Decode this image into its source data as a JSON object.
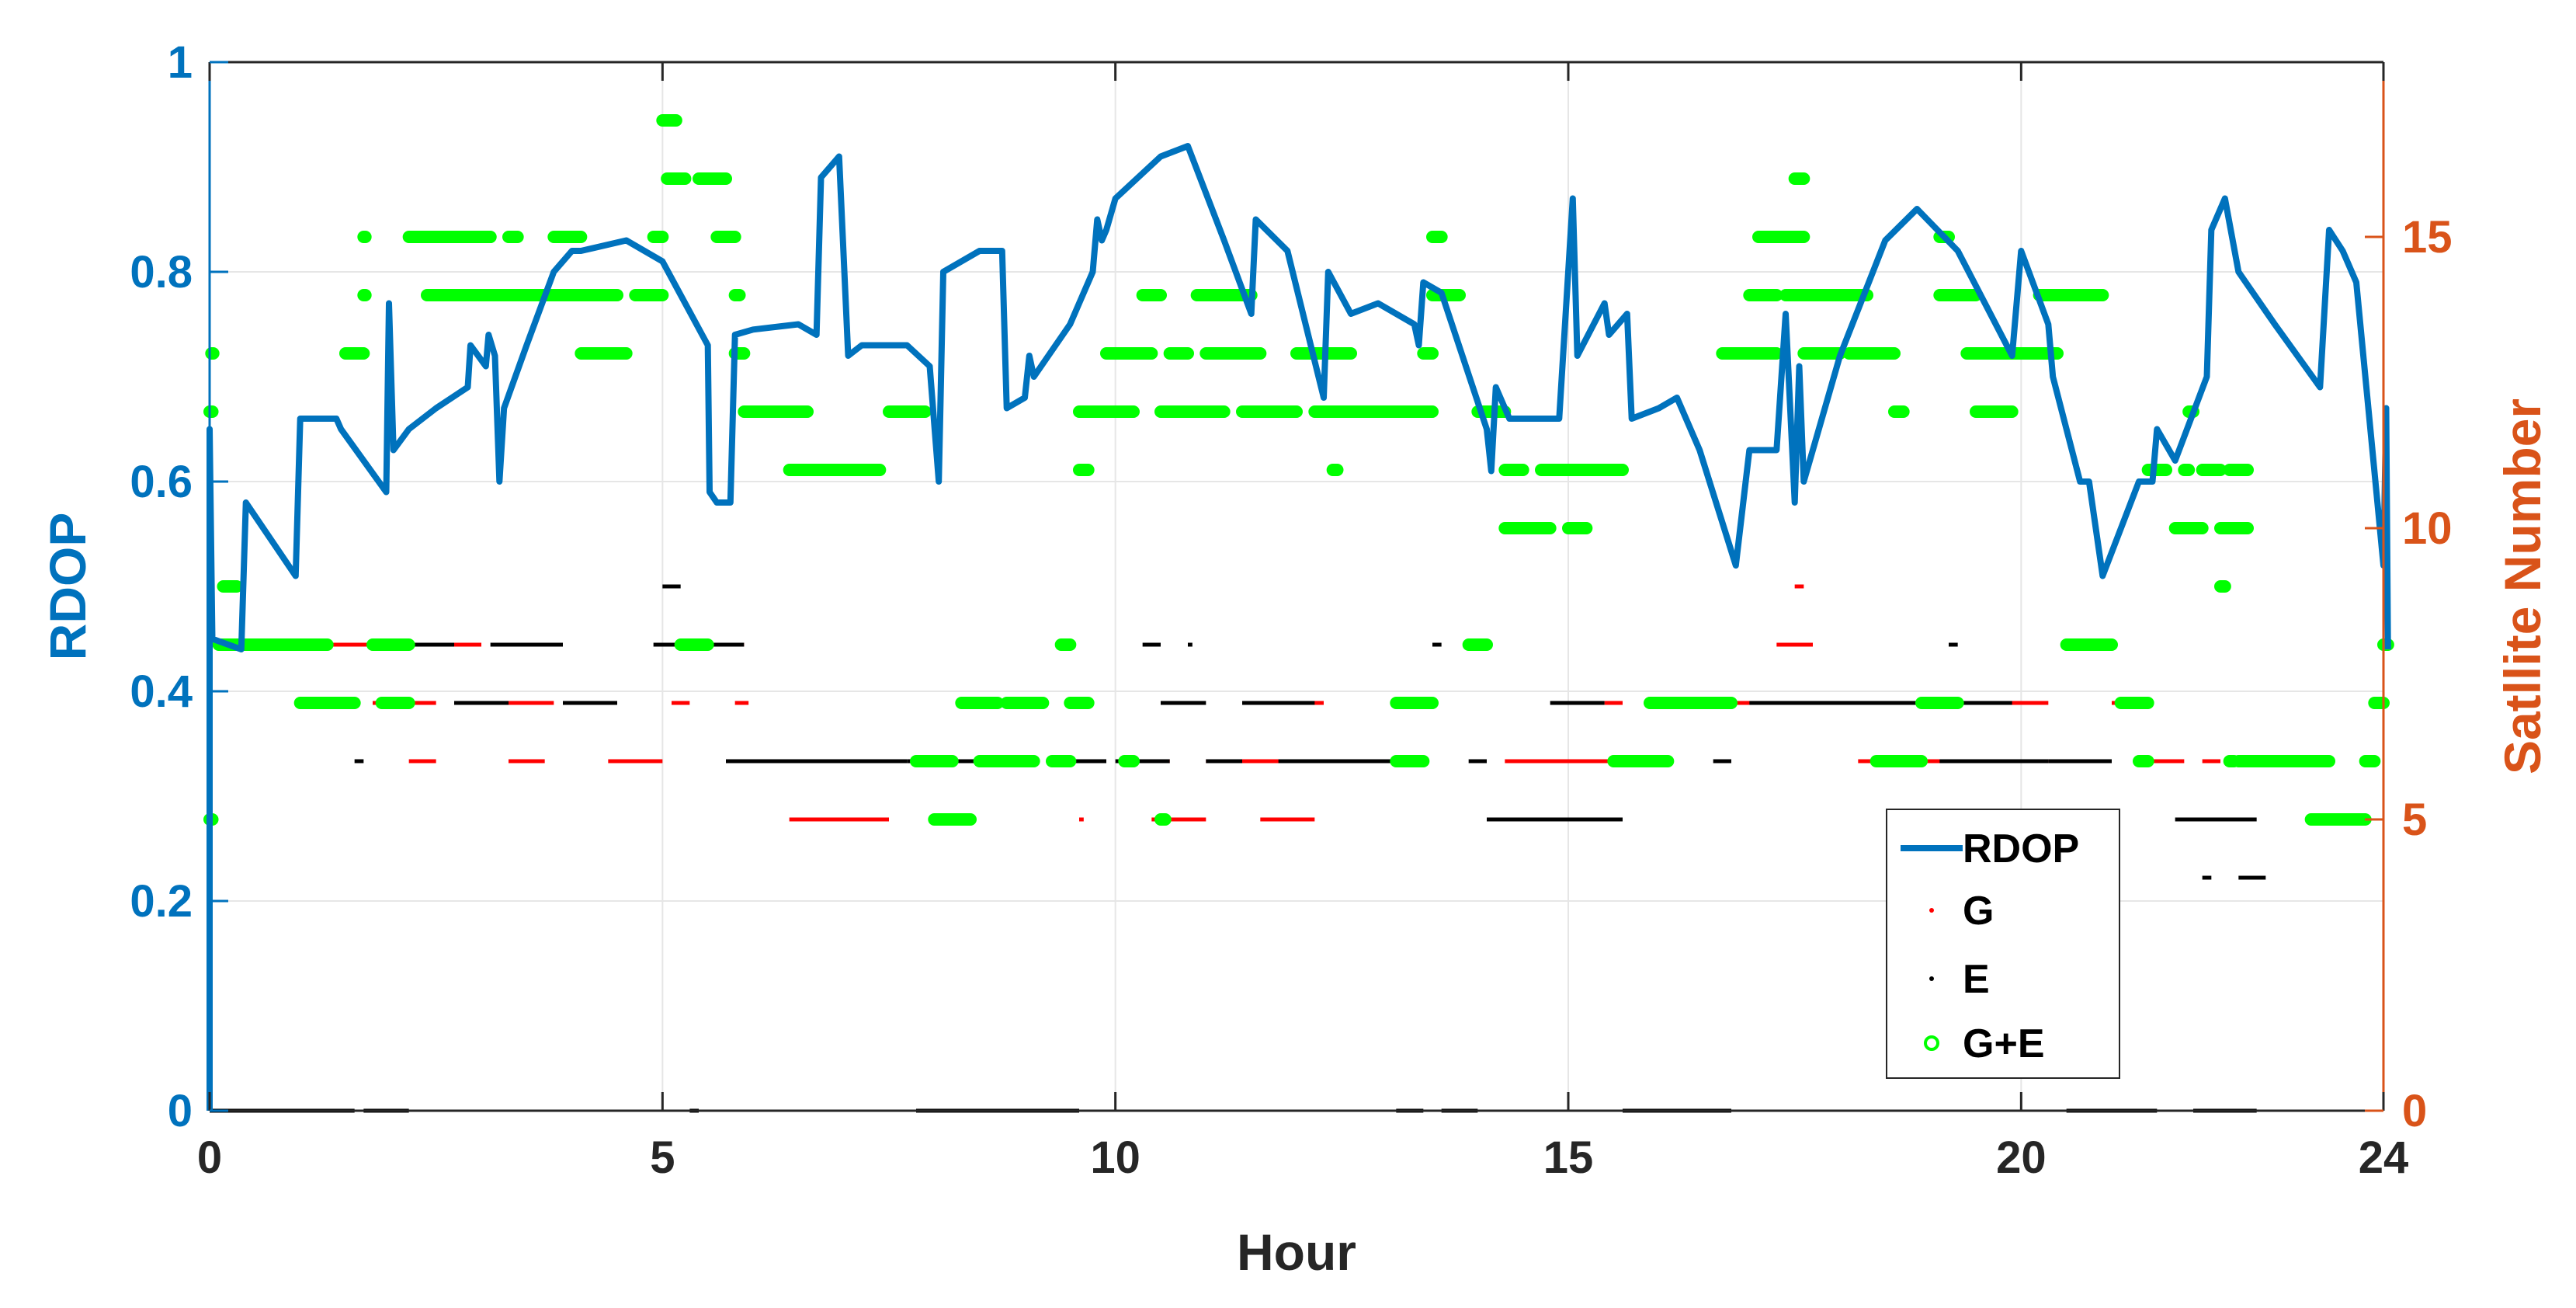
{
  "chart_data": {
    "type": "line",
    "xlabel": "Hour",
    "ylabel_left": "RDOP",
    "ylabel_right": "Satllite Number",
    "xlim": [
      0,
      24
    ],
    "ylim_left": [
      0,
      1
    ],
    "ylim_right": [
      0,
      18
    ],
    "x_ticks": [
      0,
      5,
      10,
      15,
      20,
      24
    ],
    "y_left_ticks": [
      0,
      0.2,
      0.4,
      0.6,
      0.8,
      1
    ],
    "y_right_ticks": [
      0,
      5,
      10,
      15
    ],
    "x_tick_labels": [
      "0",
      "5",
      "10",
      "15",
      "20",
      "24"
    ],
    "y_left_tick_labels": [
      "0",
      "0.2",
      "0.4",
      "0.6",
      "0.8",
      "1"
    ],
    "y_right_tick_labels": [
      "0",
      "5",
      "10",
      "15"
    ],
    "grid": true,
    "legend_position": "bottom-right",
    "colors": {
      "rdop": "#0072BD",
      "g": "#FF0000",
      "e": "#000000",
      "ge": "#00FF00",
      "right_axis": "#D95319",
      "grid": "#E6E6E6"
    },
    "legend": [
      {
        "key": "rdop",
        "label": "RDOP",
        "style": "line"
      },
      {
        "key": "g",
        "label": "G",
        "style": "dot"
      },
      {
        "key": "e",
        "label": "E",
        "style": "dot"
      },
      {
        "key": "ge",
        "label": "G+E",
        "style": "circle"
      }
    ],
    "rdop": [
      [
        0,
        0
      ],
      [
        0,
        0.65
      ],
      [
        0.03,
        0.45
      ],
      [
        0.35,
        0.44
      ],
      [
        0.4,
        0.58
      ],
      [
        0.95,
        0.51
      ],
      [
        1,
        0.66
      ],
      [
        1.4,
        0.66
      ],
      [
        1.45,
        0.65
      ],
      [
        1.95,
        0.59
      ],
      [
        1.98,
        0.77
      ],
      [
        2.03,
        0.63
      ],
      [
        2.2,
        0.65
      ],
      [
        2.5,
        0.67
      ],
      [
        2.85,
        0.69
      ],
      [
        2.88,
        0.73
      ],
      [
        3.05,
        0.71
      ],
      [
        3.08,
        0.74
      ],
      [
        3.15,
        0.72
      ],
      [
        3.2,
        0.6
      ],
      [
        3.25,
        0.67
      ],
      [
        3.5,
        0.73
      ],
      [
        3.8,
        0.8
      ],
      [
        4.0,
        0.82
      ],
      [
        4.1,
        0.82
      ],
      [
        4.6,
        0.83
      ],
      [
        5.0,
        0.81
      ],
      [
        5.5,
        0.73
      ],
      [
        5.52,
        0.59
      ],
      [
        5.6,
        0.58
      ],
      [
        5.75,
        0.58
      ],
      [
        5.8,
        0.74
      ],
      [
        6.0,
        0.745
      ],
      [
        6.5,
        0.75
      ],
      [
        6.7,
        0.74
      ],
      [
        6.75,
        0.89
      ],
      [
        6.95,
        0.91
      ],
      [
        7.05,
        0.72
      ],
      [
        7.2,
        0.73
      ],
      [
        7.7,
        0.73
      ],
      [
        7.95,
        0.71
      ],
      [
        8.05,
        0.6
      ],
      [
        8.1,
        0.8
      ],
      [
        8.5,
        0.82
      ],
      [
        8.75,
        0.82
      ],
      [
        8.8,
        0.67
      ],
      [
        9.0,
        0.68
      ],
      [
        9.05,
        0.72
      ],
      [
        9.1,
        0.7
      ],
      [
        9.5,
        0.75
      ],
      [
        9.75,
        0.8
      ],
      [
        9.8,
        0.85
      ],
      [
        9.85,
        0.83
      ],
      [
        9.9,
        0.84
      ],
      [
        10.0,
        0.87
      ],
      [
        10.5,
        0.91
      ],
      [
        10.8,
        0.92
      ],
      [
        11.2,
        0.83
      ],
      [
        11.5,
        0.76
      ],
      [
        11.55,
        0.85
      ],
      [
        11.9,
        0.82
      ],
      [
        12.3,
        0.68
      ],
      [
        12.35,
        0.8
      ],
      [
        12.6,
        0.76
      ],
      [
        12.9,
        0.77
      ],
      [
        13.3,
        0.75
      ],
      [
        13.35,
        0.73
      ],
      [
        13.4,
        0.79
      ],
      [
        13.6,
        0.78
      ],
      [
        14.1,
        0.65
      ],
      [
        14.15,
        0.61
      ],
      [
        14.2,
        0.69
      ],
      [
        14.35,
        0.66
      ],
      [
        14.6,
        0.66
      ],
      [
        14.9,
        0.66
      ],
      [
        15.05,
        0.87
      ],
      [
        15.1,
        0.72
      ],
      [
        15.4,
        0.77
      ],
      [
        15.45,
        0.74
      ],
      [
        15.65,
        0.76
      ],
      [
        15.7,
        0.66
      ],
      [
        16.0,
        0.67
      ],
      [
        16.2,
        0.68
      ],
      [
        16.45,
        0.63
      ],
      [
        16.85,
        0.52
      ],
      [
        17.0,
        0.63
      ],
      [
        17.3,
        0.63
      ],
      [
        17.4,
        0.76
      ],
      [
        17.5,
        0.58
      ],
      [
        17.55,
        0.71
      ],
      [
        17.6,
        0.6
      ],
      [
        18.0,
        0.72
      ],
      [
        18.5,
        0.83
      ],
      [
        18.85,
        0.86
      ],
      [
        19.3,
        0.82
      ],
      [
        19.6,
        0.77
      ],
      [
        19.9,
        0.72
      ],
      [
        20.0,
        0.82
      ],
      [
        20.3,
        0.75
      ],
      [
        20.35,
        0.7
      ],
      [
        20.65,
        0.6
      ],
      [
        20.75,
        0.6
      ],
      [
        20.9,
        0.51
      ],
      [
        21.3,
        0.6
      ],
      [
        21.45,
        0.6
      ],
      [
        21.5,
        0.65
      ],
      [
        21.7,
        0.62
      ],
      [
        22.05,
        0.7
      ],
      [
        22.1,
        0.84
      ],
      [
        22.25,
        0.87
      ],
      [
        22.4,
        0.8
      ],
      [
        22.8,
        0.75
      ],
      [
        23.3,
        0.69
      ],
      [
        23.4,
        0.84
      ],
      [
        23.55,
        0.82
      ],
      [
        23.7,
        0.79
      ],
      [
        24.0,
        0.52
      ],
      [
        24.03,
        0.67
      ],
      [
        24.05,
        0.44
      ]
    ],
    "g": [
      [
        0.0,
        1.8,
        8
      ],
      [
        0.5,
        2.3,
        8
      ],
      [
        1.8,
        2.2,
        7
      ],
      [
        2.0,
        2.5,
        7
      ],
      [
        2.2,
        2.5,
        6
      ],
      [
        2.6,
        3.0,
        8
      ],
      [
        2.8,
        3.4,
        7
      ],
      [
        3.0,
        3.8,
        7
      ],
      [
        3.3,
        3.7,
        6
      ],
      [
        3.9,
        4.5,
        7
      ],
      [
        4.4,
        5.0,
        6
      ],
      [
        5.0,
        5.9,
        8
      ],
      [
        5.1,
        5.3,
        7
      ],
      [
        5.8,
        5.95,
        7
      ],
      [
        6.4,
        7.5,
        5
      ],
      [
        6.8,
        7.6,
        6
      ],
      [
        8.3,
        8.5,
        6
      ],
      [
        9.6,
        9.65,
        5
      ],
      [
        10.2,
        10.6,
        6
      ],
      [
        10.4,
        11.0,
        5
      ],
      [
        11.0,
        12.0,
        6
      ],
      [
        11.6,
        12.2,
        5
      ],
      [
        12.1,
        12.3,
        7
      ],
      [
        13.1,
        13.4,
        7
      ],
      [
        14.3,
        15.6,
        6
      ],
      [
        15.4,
        15.6,
        7
      ],
      [
        16.7,
        17.3,
        7
      ],
      [
        17.5,
        17.6,
        9
      ],
      [
        17.3,
        17.7,
        8
      ],
      [
        18.2,
        19.2,
        6
      ],
      [
        19.5,
        20.3,
        7
      ],
      [
        20.3,
        20.6,
        6
      ],
      [
        20.6,
        21.0,
        8
      ],
      [
        21.0,
        21.2,
        7
      ],
      [
        22.3,
        22.9,
        6
      ],
      [
        21.3,
        21.8,
        6
      ],
      [
        22.0,
        22.2,
        6
      ]
    ],
    "e": [
      [
        0.0,
        1.6,
        0
      ],
      [
        1.7,
        2.2,
        0
      ],
      [
        1.6,
        1.7,
        6
      ],
      [
        2.2,
        2.7,
        8
      ],
      [
        2.7,
        3.3,
        7
      ],
      [
        3.1,
        3.9,
        8
      ],
      [
        3.9,
        4.5,
        7
      ],
      [
        4.9,
        5.9,
        8
      ],
      [
        5.0,
        5.2,
        9
      ],
      [
        5.3,
        5.4,
        0
      ],
      [
        5.7,
        7.7,
        6
      ],
      [
        7.8,
        9.6,
        0
      ],
      [
        7.7,
        8.5,
        6
      ],
      [
        9.3,
        9.9,
        6
      ],
      [
        10.0,
        10.6,
        6
      ],
      [
        10.3,
        10.5,
        8
      ],
      [
        10.8,
        10.85,
        8
      ],
      [
        10.5,
        11.0,
        7
      ],
      [
        11.0,
        11.4,
        6
      ],
      [
        11.4,
        12.2,
        7
      ],
      [
        11.8,
        13.3,
        6
      ],
      [
        13.1,
        13.4,
        0
      ],
      [
        13.5,
        13.6,
        8
      ],
      [
        13.6,
        14.0,
        0
      ],
      [
        14.1,
        15.6,
        5
      ],
      [
        13.9,
        14.1,
        6
      ],
      [
        14.8,
        15.4,
        7
      ],
      [
        15.6,
        16.8,
        0
      ],
      [
        16.6,
        16.8,
        6
      ],
      [
        17.0,
        19.0,
        7
      ],
      [
        19.2,
        19.3,
        8
      ],
      [
        19.1,
        20.3,
        6
      ],
      [
        19.2,
        19.9,
        7
      ],
      [
        20.3,
        21.0,
        6
      ],
      [
        20.5,
        21.5,
        0
      ],
      [
        21.9,
        22.6,
        0
      ],
      [
        21.7,
        22.6,
        5
      ],
      [
        22.0,
        22.1,
        4
      ],
      [
        22.4,
        22.7,
        4
      ]
    ],
    "ge": [
      [
        0.0,
        0.03,
        12
      ],
      [
        0.02,
        0.04,
        13
      ],
      [
        0.0,
        0.03,
        5
      ],
      [
        0.15,
        0.3,
        9
      ],
      [
        0.1,
        0.8,
        8
      ],
      [
        0.8,
        1.3,
        8
      ],
      [
        1.0,
        1.6,
        7
      ],
      [
        1.5,
        1.7,
        13
      ],
      [
        1.7,
        1.72,
        15
      ],
      [
        1.7,
        1.72,
        14
      ],
      [
        1.8,
        2.2,
        8
      ],
      [
        1.9,
        2.2,
        7
      ],
      [
        2.2,
        3.1,
        15
      ],
      [
        2.4,
        3.7,
        14
      ],
      [
        2.9,
        3.1,
        15
      ],
      [
        3.3,
        3.4,
        15
      ],
      [
        3.6,
        4.5,
        14
      ],
      [
        3.8,
        4.1,
        15
      ],
      [
        4.1,
        4.6,
        13
      ],
      [
        4.7,
        5.0,
        14
      ],
      [
        4.9,
        5.0,
        15
      ],
      [
        5.0,
        5.15,
        17
      ],
      [
        5.05,
        5.25,
        16
      ],
      [
        5.2,
        5.5,
        8
      ],
      [
        5.4,
        5.7,
        16
      ],
      [
        5.6,
        5.8,
        15
      ],
      [
        5.8,
        5.85,
        14
      ],
      [
        5.8,
        5.9,
        13
      ],
      [
        5.9,
        6.6,
        12
      ],
      [
        6.4,
        7.4,
        11
      ],
      [
        7.5,
        7.9,
        12
      ],
      [
        7.8,
        8.2,
        6
      ],
      [
        8.0,
        8.4,
        5
      ],
      [
        8.3,
        8.7,
        7
      ],
      [
        8.5,
        9.1,
        6
      ],
      [
        8.8,
        9.2,
        7
      ],
      [
        9.3,
        9.5,
        6
      ],
      [
        9.6,
        9.7,
        11
      ],
      [
        9.6,
        10.2,
        12
      ],
      [
        9.5,
        9.7,
        7
      ],
      [
        9.4,
        9.5,
        8
      ],
      [
        9.9,
        10.4,
        13
      ],
      [
        10.3,
        10.5,
        14
      ],
      [
        10.1,
        10.2,
        6
      ],
      [
        10.5,
        11.2,
        12
      ],
      [
        10.6,
        10.8,
        13
      ],
      [
        10.9,
        11.5,
        14
      ],
      [
        10.5,
        10.55,
        5
      ],
      [
        11.0,
        11.6,
        13
      ],
      [
        11.4,
        12.0,
        12
      ],
      [
        12.0,
        12.6,
        13
      ],
      [
        12.2,
        13.5,
        12
      ],
      [
        12.4,
        12.45,
        11
      ],
      [
        13.1,
        13.5,
        7
      ],
      [
        13.1,
        13.4,
        6
      ],
      [
        13.5,
        13.6,
        15
      ],
      [
        13.5,
        13.8,
        14
      ],
      [
        13.4,
        13.5,
        13
      ],
      [
        14.0,
        14.3,
        12
      ],
      [
        13.9,
        14.1,
        8
      ],
      [
        14.3,
        14.5,
        11
      ],
      [
        14.3,
        14.8,
        10
      ],
      [
        14.7,
        15.1,
        11
      ],
      [
        15.1,
        15.2,
        10
      ],
      [
        15.0,
        15.1,
        10
      ],
      [
        14.9,
        15.2,
        11
      ],
      [
        15.2,
        15.6,
        11
      ],
      [
        15.5,
        16.1,
        6
      ],
      [
        15.9,
        16.8,
        7
      ],
      [
        16.7,
        17.3,
        13
      ],
      [
        17.0,
        17.3,
        14
      ],
      [
        17.1,
        17.4,
        15
      ],
      [
        17.5,
        17.6,
        16
      ],
      [
        17.3,
        17.6,
        15
      ],
      [
        17.4,
        18.3,
        14
      ],
      [
        17.6,
        18.0,
        13
      ],
      [
        18.1,
        18.6,
        13
      ],
      [
        18.6,
        18.7,
        12
      ],
      [
        18.4,
        18.9,
        6
      ],
      [
        18.9,
        19.3,
        7
      ],
      [
        19.1,
        19.2,
        15
      ],
      [
        19.1,
        19.5,
        14
      ],
      [
        19.4,
        19.8,
        13
      ],
      [
        19.5,
        19.9,
        12
      ],
      [
        19.8,
        20.4,
        13
      ],
      [
        20.2,
        20.9,
        14
      ],
      [
        20.5,
        21.0,
        8
      ],
      [
        21.1,
        21.4,
        7
      ],
      [
        21.3,
        21.4,
        6
      ],
      [
        21.4,
        21.6,
        11
      ],
      [
        21.8,
        21.85,
        11
      ],
      [
        21.7,
        22.0,
        10
      ],
      [
        21.85,
        21.9,
        12
      ],
      [
        22.0,
        22.2,
        11
      ],
      [
        22.2,
        22.4,
        10
      ],
      [
        22.3,
        22.5,
        10
      ],
      [
        22.2,
        22.25,
        9
      ],
      [
        22.3,
        22.5,
        11
      ],
      [
        22.3,
        22.35,
        6
      ],
      [
        22.4,
        22.6,
        6
      ],
      [
        22.6,
        23.4,
        6
      ],
      [
        23.2,
        23.8,
        5
      ],
      [
        23.8,
        23.9,
        6
      ],
      [
        24.0,
        24.05,
        8
      ],
      [
        23.9,
        24.0,
        7
      ]
    ]
  }
}
